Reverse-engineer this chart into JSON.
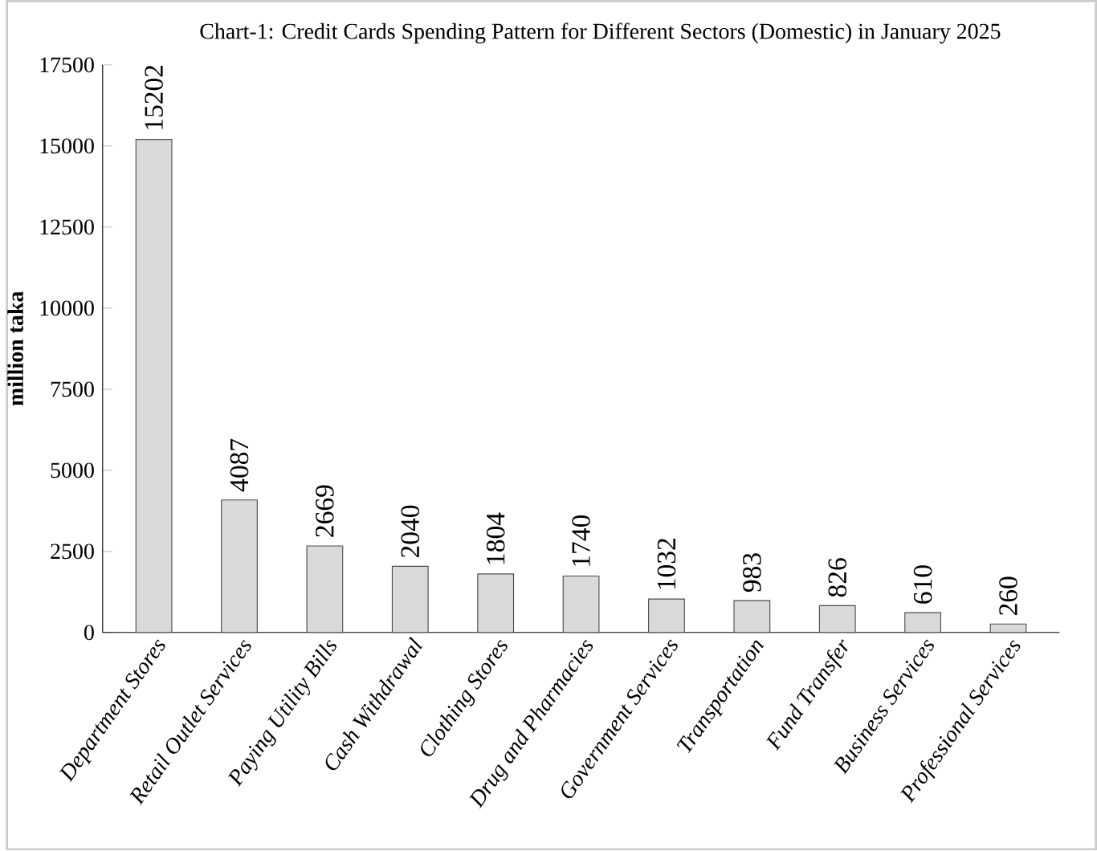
{
  "chart_data": {
    "type": "bar",
    "title": "Chart-1:  Credit Cards Spending Pattern for Different Sectors (Domestic) in January 2025",
    "ylabel": "million taka",
    "categories": [
      "Department Stores",
      "Retail Outlet Services",
      "Paying Utility  Bills",
      "Cash Withdrawal",
      "Clothing Stores",
      "Drug and Pharmacies",
      "Government Services",
      "Transportation",
      "Fund Transfer",
      "Business Services",
      "Professional Services"
    ],
    "values": [
      15202,
      4087,
      2669,
      2040,
      1804,
      1740,
      1032,
      983,
      826,
      610,
      260
    ],
    "color": "#d9d9d9",
    "ylim": [
      0,
      17500
    ],
    "yticks": [
      0,
      2500,
      5000,
      7500,
      10000,
      12500,
      15000,
      17500
    ],
    "data_labels": true
  }
}
